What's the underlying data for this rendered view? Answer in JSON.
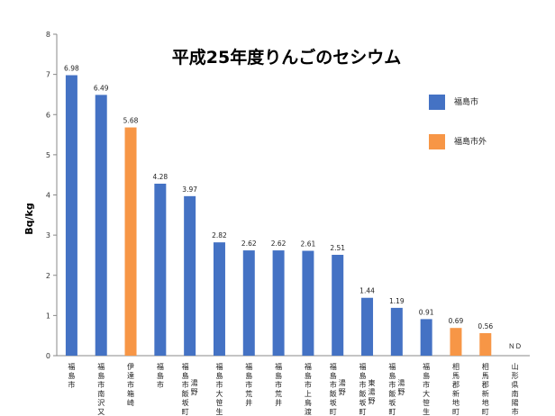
{
  "chart_data": {
    "type": "bar",
    "title": "平成25年度りんごのセシウム",
    "ylabel": "Bq/kg",
    "xlabel": "",
    "ylim": [
      0,
      8
    ],
    "yticks": [
      0,
      1,
      2,
      3,
      4,
      5,
      6,
      7,
      8
    ],
    "grid": false,
    "legend": [
      {
        "name": "福島市",
        "color": "#4472C4"
      },
      {
        "name": "福島市外",
        "color": "#F79646"
      }
    ],
    "categories": [
      [
        "福島市"
      ],
      [
        "福島市南沢又"
      ],
      [
        "伊達市箱崎"
      ],
      [
        "福島市"
      ],
      [
        "福島市飯坂町",
        "湯野"
      ],
      [
        "福島市大笹生"
      ],
      [
        "福島市荒井"
      ],
      [
        "福島市荒井"
      ],
      [
        "福島市上鳥渡"
      ],
      [
        "福島市飯坂町",
        "湯野"
      ],
      [
        "福島市飯坂町",
        "東湯野"
      ],
      [
        "福島市飯坂町",
        "湯野"
      ],
      [
        "福島市大笹生"
      ],
      [
        "相馬郡新地町"
      ],
      [
        "相馬郡新地町"
      ],
      [
        "山形県南陽市"
      ]
    ],
    "values": [
      6.98,
      6.49,
      5.68,
      4.28,
      3.97,
      2.82,
      2.62,
      2.62,
      2.61,
      2.51,
      1.44,
      1.19,
      0.91,
      0.69,
      0.56,
      null
    ],
    "value_labels": [
      "6.98",
      "6.49",
      "5.68",
      "4.28",
      "3.97",
      "2.82",
      "2.62",
      "2.62",
      "2.61",
      "2.51",
      "1.44",
      "1.19",
      "0.91",
      "0.69",
      "0.56",
      "ＮＤ"
    ],
    "groups": [
      "福島市",
      "福島市",
      "福島市外",
      "福島市",
      "福島市",
      "福島市",
      "福島市",
      "福島市",
      "福島市",
      "福島市",
      "福島市",
      "福島市",
      "福島市",
      "福島市外",
      "福島市外",
      "福島市外"
    ]
  }
}
